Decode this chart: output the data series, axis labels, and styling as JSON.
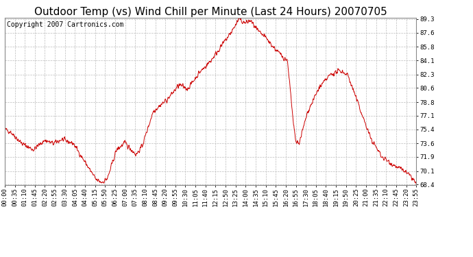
{
  "title": "Outdoor Temp (vs) Wind Chill per Minute (Last 24 Hours) 20070705",
  "copyright": "Copyright 2007 Cartronics.com",
  "line_color": "#cc0000",
  "background_color": "#ffffff",
  "grid_color": "#bbbbbb",
  "y_min": 68.4,
  "y_max": 89.3,
  "yticks": [
    68.4,
    70.1,
    71.9,
    73.6,
    75.4,
    77.1,
    78.8,
    80.6,
    82.3,
    84.1,
    85.8,
    87.6,
    89.3
  ],
  "x_labels": [
    "00:00",
    "00:35",
    "01:10",
    "01:45",
    "02:20",
    "02:55",
    "03:30",
    "04:05",
    "04:40",
    "05:15",
    "05:50",
    "06:25",
    "07:00",
    "07:35",
    "08:10",
    "08:45",
    "09:20",
    "09:55",
    "10:30",
    "11:05",
    "11:40",
    "12:15",
    "12:50",
    "13:25",
    "14:00",
    "14:35",
    "15:10",
    "15:45",
    "16:20",
    "16:55",
    "17:30",
    "18:05",
    "18:40",
    "19:15",
    "19:50",
    "20:25",
    "21:00",
    "21:35",
    "22:10",
    "22:45",
    "23:20",
    "23:55"
  ],
  "title_fontsize": 11,
  "copyright_fontsize": 7,
  "tick_fontsize": 6.5
}
